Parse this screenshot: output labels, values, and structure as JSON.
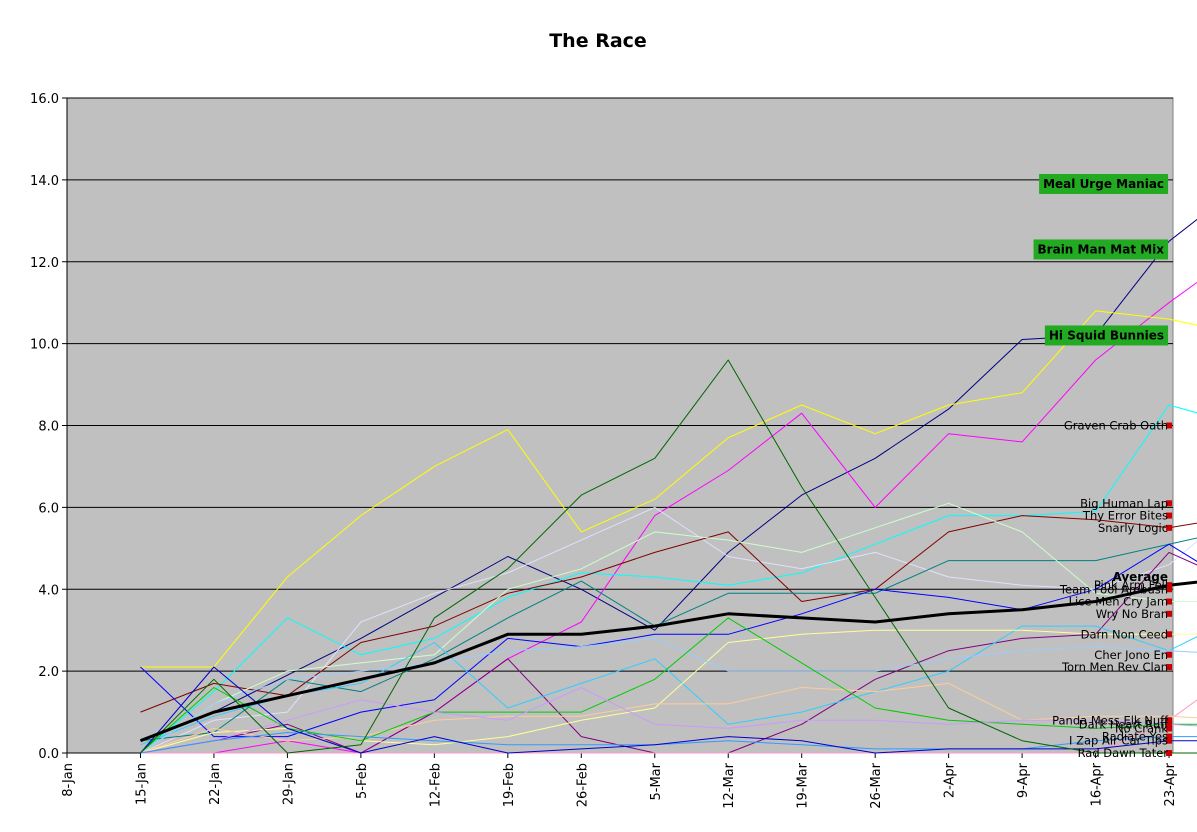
{
  "chart_data": {
    "type": "line",
    "title": "The Race",
    "xlabel": "",
    "ylabel": "",
    "ylim": [
      0,
      16
    ],
    "yticks": [
      "0.0",
      "2.0",
      "4.0",
      "6.0",
      "8.0",
      "10.0",
      "12.0",
      "14.0",
      "16.0"
    ],
    "categories": [
      "8-Jan",
      "15-Jan",
      "22-Jan",
      "29-Jan",
      "5-Feb",
      "12-Feb",
      "19-Feb",
      "26-Feb",
      "5-Mar",
      "12-Mar",
      "19-Mar",
      "26-Mar",
      "2-Apr",
      "9-Apr",
      "16-Apr",
      "23-Apr"
    ],
    "plot_background": "#c0c0c0",
    "grid": true,
    "leaders": [
      "Meal Urge Maniac",
      "Brain Man Mat Mix",
      "Hi Squid Bunnies"
    ],
    "leader_label_color": "#22aa22",
    "series": [
      {
        "name": "Meal Urge Maniac",
        "color": "#000080",
        "values": [
          0.3,
          1.0,
          1.9,
          2.8,
          3.8,
          4.8,
          4.0,
          3.0,
          4.9,
          6.3,
          7.2,
          8.4,
          10.1,
          10.2,
          12.5,
          13.9
        ]
      },
      {
        "name": "Brain Man Mat Mix",
        "color": "#ff00ff",
        "values": [
          0.0,
          0.0,
          0.3,
          0.0,
          1.0,
          2.3,
          3.2,
          5.8,
          6.9,
          8.3,
          6.0,
          7.8,
          7.6,
          9.6,
          11.0,
          12.3
        ]
      },
      {
        "name": "Hi Squid Bunnies",
        "color": "#ffff00",
        "values": [
          2.1,
          2.1,
          4.3,
          5.8,
          7.0,
          7.9,
          5.4,
          6.2,
          7.7,
          8.5,
          7.8,
          8.5,
          8.8,
          10.8,
          10.6,
          10.2
        ]
      },
      {
        "name": "Graven Crab Oath",
        "color": "#00ffff",
        "values": [
          0.0,
          1.5,
          3.3,
          2.4,
          2.8,
          3.8,
          4.4,
          4.3,
          4.1,
          4.4,
          5.1,
          5.8,
          5.8,
          5.9,
          8.5,
          8.0
        ]
      },
      {
        "name": "Big Human Lap",
        "color": "#e0e0ff",
        "values": [
          0.0,
          0.8,
          1.0,
          3.2,
          3.9,
          4.4,
          5.2,
          6.0,
          4.8,
          4.5,
          4.9,
          4.3,
          4.1,
          4.0,
          4.6,
          6.1
        ]
      },
      {
        "name": "Thy Error Bites",
        "color": "#800000",
        "values": [
          1.0,
          1.7,
          1.4,
          2.7,
          3.1,
          3.9,
          4.3,
          4.9,
          5.4,
          3.7,
          4.0,
          5.4,
          5.8,
          5.7,
          5.5,
          5.8
        ]
      },
      {
        "name": "Snarly Logic",
        "color": "#008080",
        "values": [
          0.3,
          0.5,
          1.8,
          1.5,
          2.3,
          3.3,
          4.2,
          3.1,
          3.9,
          3.9,
          3.9,
          4.7,
          4.7,
          4.7,
          5.1,
          5.5
        ]
      },
      {
        "name": "Pink Arm Fell",
        "color": "#800080",
        "values": [
          0.0,
          0.3,
          0.7,
          0.0,
          1.0,
          2.3,
          0.4,
          0.0,
          0.0,
          0.7,
          1.8,
          2.5,
          2.8,
          2.9,
          4.9,
          4.1
        ]
      },
      {
        "name": "Team Fool Ambush",
        "color": "#0000ff",
        "values": [
          2.1,
          0.4,
          0.4,
          1.0,
          1.3,
          2.8,
          2.6,
          2.9,
          2.9,
          3.4,
          4.0,
          3.8,
          3.5,
          4.0,
          5.1,
          4.0
        ]
      },
      {
        "name": "Lice Men Cry Jam",
        "color": "#ccffcc",
        "values": [
          0.0,
          1.2,
          2.0,
          2.2,
          2.4,
          4.0,
          4.5,
          5.4,
          5.2,
          4.9,
          5.5,
          6.1,
          5.4,
          3.9,
          3.7,
          3.7
        ]
      },
      {
        "name": "Wry No Bran",
        "color": "#33ccff",
        "values": [
          0.2,
          0.9,
          1.4,
          1.7,
          2.7,
          1.1,
          1.7,
          2.3,
          0.7,
          1.0,
          1.5,
          2.0,
          3.1,
          3.1,
          2.5,
          3.4
        ]
      },
      {
        "name": "Darn Non Ceed",
        "color": "#ffff99",
        "values": [
          0.0,
          0.5,
          0.6,
          0.3,
          0.2,
          0.4,
          0.8,
          1.1,
          2.7,
          2.9,
          3.0,
          3.0,
          3.0,
          2.9,
          2.9,
          2.9
        ]
      },
      {
        "name": "Cher Jono En",
        "color": "#99ccff",
        "values": [
          0.0,
          1.2,
          1.8,
          2.0,
          2.2,
          2.5,
          2.6,
          2.8,
          2.0,
          2.0,
          2.0,
          2.3,
          2.5,
          2.6,
          2.5,
          2.4
        ]
      },
      {
        "name": "Torn Men Rev Clan",
        "color": "#ff99cc",
        "values": [
          0.0,
          0.0,
          0.0,
          0.0,
          0.0,
          0.0,
          0.0,
          0.0,
          0.0,
          0.0,
          0.0,
          0.0,
          0.0,
          0.0,
          0.8,
          2.1
        ]
      },
      {
        "name": "Panda Mess Elk Nuff",
        "color": "#ffcc99",
        "values": [
          0.0,
          0.6,
          0.3,
          0.4,
          0.8,
          0.9,
          0.9,
          1.2,
          1.2,
          1.6,
          1.5,
          1.7,
          0.8,
          0.9,
          0.9,
          0.8
        ]
      },
      {
        "name": "Dark Heart Ruff",
        "color": "#00cc00",
        "values": [
          0.0,
          1.6,
          0.6,
          0.3,
          1.0,
          1.0,
          1.0,
          1.8,
          3.3,
          2.2,
          1.1,
          0.8,
          0.7,
          0.6,
          0.7,
          0.7
        ]
      },
      {
        "name": "No Crank",
        "color": "#cc99ff",
        "values": [
          0.0,
          0.3,
          0.8,
          1.3,
          1.0,
          0.8,
          1.6,
          0.7,
          0.6,
          0.8,
          0.8,
          0.7,
          0.8,
          0.8,
          0.7,
          0.6
        ]
      },
      {
        "name": "Radiate Yes",
        "color": "#3399ff",
        "values": [
          0.0,
          0.3,
          0.5,
          0.4,
          0.3,
          0.2,
          0.2,
          0.2,
          0.3,
          0.2,
          0.1,
          0.1,
          0.1,
          0.3,
          0.4,
          0.4
        ]
      },
      {
        "name": "I Zap Air Car Tips",
        "color": "#0000cc",
        "values": [
          0.0,
          2.1,
          0.6,
          0.0,
          0.4,
          0.0,
          0.1,
          0.2,
          0.4,
          0.3,
          0.0,
          0.1,
          0.1,
          0.1,
          0.3,
          0.3
        ]
      },
      {
        "name": "Rad Dawn Tater",
        "color": "#006600",
        "values": [
          0.0,
          1.8,
          0.0,
          0.2,
          3.3,
          4.5,
          6.3,
          7.2,
          9.6,
          6.5,
          3.8,
          1.1,
          0.3,
          0.0,
          0.0,
          0.0
        ]
      },
      {
        "name": "Average",
        "color": "#000000",
        "bold": true,
        "values": [
          0.3,
          1.0,
          1.4,
          1.8,
          2.2,
          2.9,
          2.9,
          3.1,
          3.4,
          3.3,
          3.2,
          3.4,
          3.5,
          3.7,
          4.1,
          4.3
        ]
      }
    ]
  }
}
